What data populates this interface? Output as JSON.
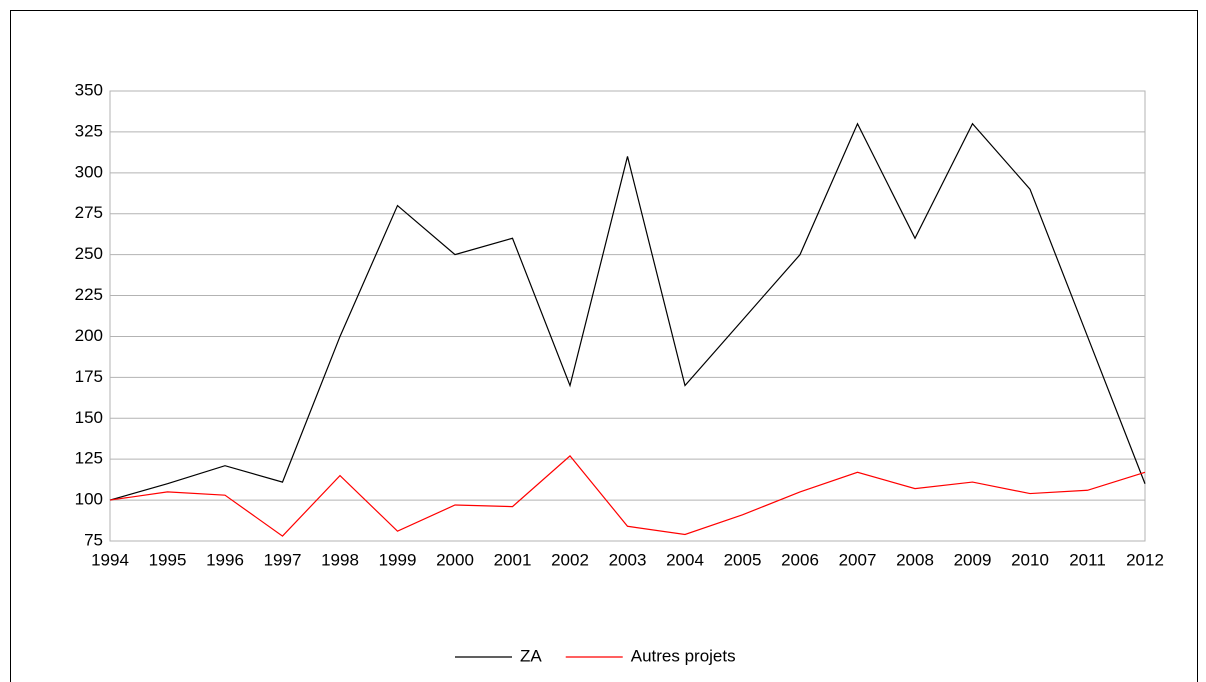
{
  "chart_data": {
    "type": "line",
    "categories": [
      "1994",
      "1995",
      "1996",
      "1997",
      "1998",
      "1999",
      "2000",
      "2001",
      "2002",
      "2003",
      "2004",
      "2005",
      "2006",
      "2007",
      "2008",
      "2009",
      "2010",
      "2011",
      "2012"
    ],
    "series": [
      {
        "name": "ZA",
        "color": "#000000",
        "values": [
          100,
          110,
          121,
          111,
          200,
          280,
          250,
          260,
          170,
          310,
          170,
          210,
          250,
          330,
          260,
          330,
          290,
          200,
          110
        ]
      },
      {
        "name": "Autres projets",
        "color": "#ff0000",
        "values": [
          100,
          105,
          103,
          78,
          115,
          81,
          97,
          96,
          127,
          84,
          79,
          91,
          105,
          117,
          107,
          111,
          104,
          106,
          117
        ]
      }
    ],
    "ylim": [
      75,
      350
    ],
    "yticks": [
      75,
      100,
      125,
      150,
      175,
      200,
      225,
      250,
      275,
      300,
      325,
      350
    ],
    "grid": true,
    "legend": "bottom"
  }
}
